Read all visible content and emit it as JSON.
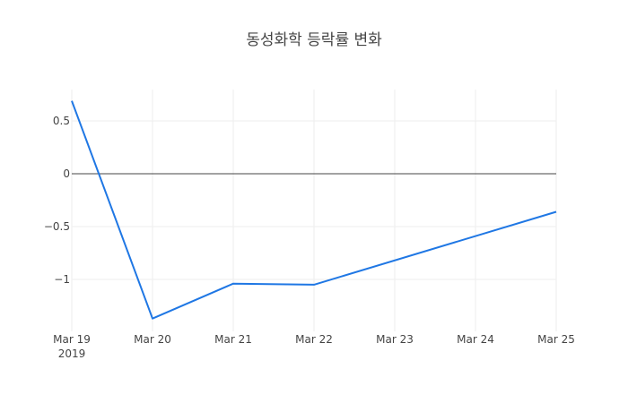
{
  "chart_data": {
    "type": "line",
    "title": "동성화학 등락률 변화",
    "xlabel": "",
    "ylabel": "",
    "x": [
      "2019-03-19",
      "2019-03-20",
      "2019-03-21",
      "2019-03-22",
      "2019-03-25"
    ],
    "series": [
      {
        "name": "등락률",
        "values": [
          0.69,
          -1.37,
          -1.04,
          -1.05,
          -0.36
        ],
        "color": "#1f77e4"
      }
    ],
    "x_ticks": [
      "Mar 19",
      "Mar 20",
      "Mar 21",
      "Mar 22",
      "Mar 23",
      "Mar 24",
      "Mar 25"
    ],
    "x_tick_subtitle": "2019",
    "y_ticks": [
      0.5,
      0,
      -0.5,
      -1
    ],
    "y_tick_labels": [
      "0.5",
      "0",
      "−0.5",
      "−1"
    ],
    "xlim": [
      "2019-03-19",
      "2019-03-25"
    ],
    "ylim": [
      -1.47,
      0.79
    ],
    "grid": true,
    "legend": false
  }
}
